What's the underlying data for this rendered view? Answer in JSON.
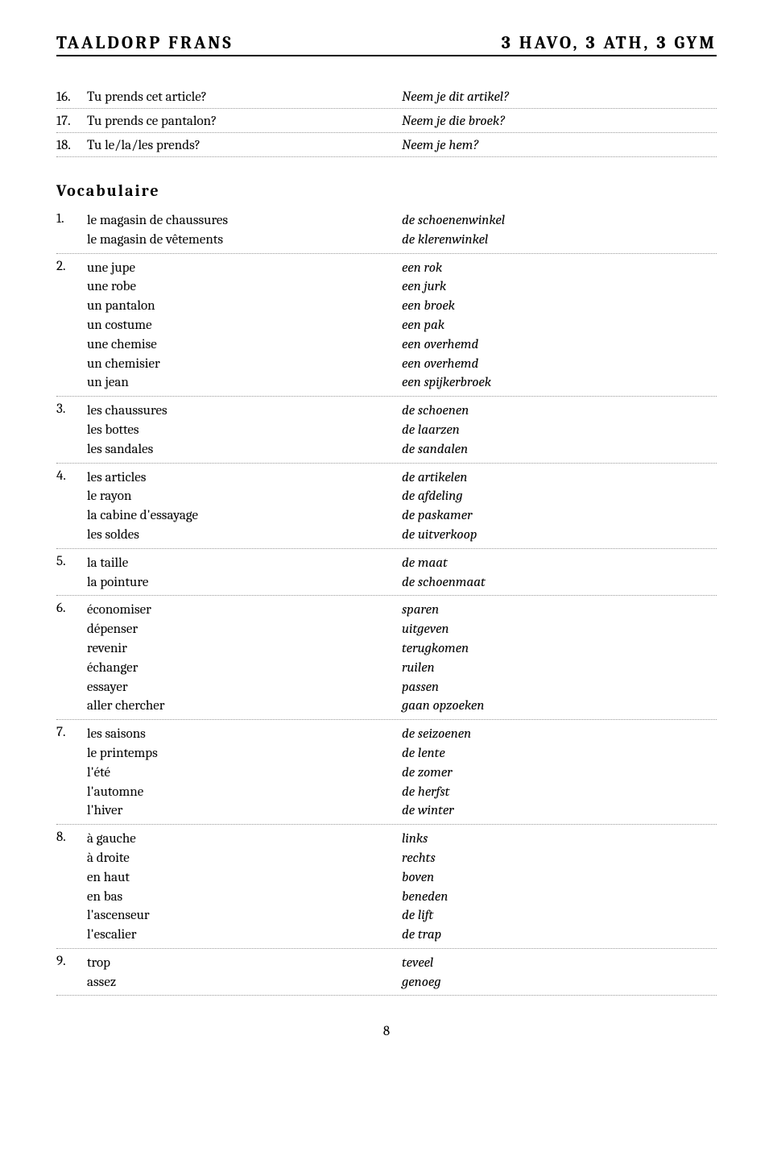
{
  "header": {
    "left": "TAALDORP FRANS",
    "right": "3 HAVO, 3 ATH, 3 GYM"
  },
  "phrases": [
    {
      "num": "16.",
      "french": "Tu prends cet article?",
      "dutch": "Neem je dit artikel?"
    },
    {
      "num": "17.",
      "french": "Tu prends ce pantalon?",
      "dutch": "Neem je die broek?"
    },
    {
      "num": "18.",
      "french": "Tu le/la/les prends?",
      "dutch": "Neem je hem?"
    }
  ],
  "vocabTitle": "Vocabulaire",
  "vocab": [
    {
      "num": "1.",
      "french": [
        "le magasin de chaussures",
        "le magasin de vêtements"
      ],
      "dutch": [
        "de schoenenwinkel",
        "de klerenwinkel"
      ]
    },
    {
      "num": "2.",
      "french": [
        "une jupe",
        "une robe",
        "un pantalon",
        "un costume",
        "une chemise",
        "un chemisier",
        "un jean"
      ],
      "dutch": [
        "een rok",
        "een jurk",
        "een broek",
        "een pak",
        "een overhemd",
        "een overhemd",
        "een spijkerbroek"
      ]
    },
    {
      "num": "3.",
      "french": [
        "les chaussures",
        "les bottes",
        "les sandales"
      ],
      "dutch": [
        "de schoenen",
        "de laarzen",
        "de sandalen"
      ]
    },
    {
      "num": "4.",
      "french": [
        "les articles",
        "le rayon",
        "la cabine d'essayage",
        "les soldes"
      ],
      "dutch": [
        "de artikelen",
        "de afdeling",
        "de paskamer",
        "de uitverkoop"
      ]
    },
    {
      "num": "5.",
      "french": [
        "la taille",
        "la pointure"
      ],
      "dutch": [
        "de maat",
        "de schoenmaat"
      ]
    },
    {
      "num": "6.",
      "french": [
        "économiser",
        "dépenser",
        "revenir",
        "échanger",
        "essayer",
        "aller chercher"
      ],
      "dutch": [
        "sparen",
        "uitgeven",
        "terugkomen",
        "ruilen",
        "passen",
        "gaan opzoeken"
      ]
    },
    {
      "num": "7.",
      "french": [
        "les saisons",
        "le printemps",
        "l'été",
        "l'automne",
        "l'hiver"
      ],
      "dutch": [
        "de seizoenen",
        "de lente",
        "de zomer",
        "de herfst",
        "de winter"
      ]
    },
    {
      "num": "8.",
      "french": [
        "à gauche",
        "à droite",
        "en haut",
        "en bas",
        "l'ascenseur",
        "l'escalier"
      ],
      "dutch": [
        "links",
        "rechts",
        "boven",
        "beneden",
        "de lift",
        "de trap"
      ]
    },
    {
      "num": "9.",
      "french": [
        "trop",
        "assez"
      ],
      "dutch": [
        "teveel",
        "genoeg"
      ]
    }
  ],
  "pageNumber": "8"
}
